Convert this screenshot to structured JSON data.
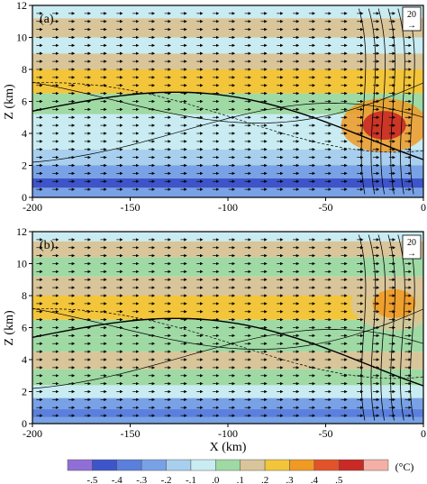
{
  "chart_data": [
    {
      "panel_label": "(a)",
      "type": "heatmap",
      "title": "",
      "ylabel": "Z (km)",
      "xlabel": "",
      "xlim": [
        -200,
        0
      ],
      "ylim": [
        0,
        12
      ],
      "x_ticks": [
        "-200",
        "-150",
        "-100",
        "-50",
        "0"
      ],
      "y_ticks": [
        "0",
        "2",
        "4",
        "6",
        "8",
        "10",
        "12"
      ],
      "reference_vector": {
        "label": "20",
        "symbol": "→"
      },
      "bands": [
        {
          "z": [
            0.0,
            0.6
          ],
          "value": -0.3
        },
        {
          "z": [
            0.6,
            1.2
          ],
          "value": -0.45
        },
        {
          "z": [
            1.2,
            2.0
          ],
          "value": -0.35
        },
        {
          "z": [
            2.0,
            3.0
          ],
          "value": -0.2
        },
        {
          "z": [
            3.0,
            4.2
          ],
          "value": -0.1
        },
        {
          "z": [
            4.2,
            5.2
          ],
          "value": -0.05
        },
        {
          "z": [
            5.2,
            6.5
          ],
          "value": 0.0
        },
        {
          "z": [
            6.5,
            8.0
          ],
          "value": 0.2
        },
        {
          "z": [
            8.0,
            9.0
          ],
          "value": 0.1
        },
        {
          "z": [
            9.0,
            10.0
          ],
          "value": -0.05
        },
        {
          "z": [
            10.0,
            11.2
          ],
          "value": 0.1
        },
        {
          "z": [
            11.2,
            12.0
          ],
          "value": -0.1
        }
      ],
      "warm_core": {
        "x": -20,
        "z": 4.5,
        "value": 0.5
      }
    },
    {
      "panel_label": "(b)",
      "type": "heatmap",
      "title": "",
      "ylabel": "Z (km)",
      "xlabel": "X (km)",
      "xlim": [
        -200,
        0
      ],
      "ylim": [
        0,
        12
      ],
      "x_ticks": [
        "-200",
        "-150",
        "-100",
        "-50",
        "0"
      ],
      "y_ticks": [
        "0",
        "2",
        "4",
        "6",
        "8",
        "10",
        "12"
      ],
      "reference_vector": {
        "label": "20",
        "symbol": "→"
      },
      "bands": [
        {
          "z": [
            0.0,
            0.4
          ],
          "value": -0.25
        },
        {
          "z": [
            0.4,
            0.9
          ],
          "value": -0.4
        },
        {
          "z": [
            0.9,
            1.6
          ],
          "value": -0.3
        },
        {
          "z": [
            1.6,
            2.4
          ],
          "value": -0.15
        },
        {
          "z": [
            2.4,
            3.4
          ],
          "value": 0.0
        },
        {
          "z": [
            3.4,
            4.5
          ],
          "value": 0.1
        },
        {
          "z": [
            4.5,
            5.4
          ],
          "value": 0.0
        },
        {
          "z": [
            5.4,
            6.5
          ],
          "value": 0.05
        },
        {
          "z": [
            6.5,
            8.0
          ],
          "value": 0.2
        },
        {
          "z": [
            8.0,
            9.2
          ],
          "value": 0.1
        },
        {
          "z": [
            9.2,
            10.4
          ],
          "value": 0.0
        },
        {
          "z": [
            10.4,
            11.4
          ],
          "value": 0.1
        },
        {
          "z": [
            11.4,
            12.0
          ],
          "value": -0.1
        }
      ],
      "warm_core": {
        "x": -15,
        "z": 7.5,
        "value": 0.3
      }
    }
  ],
  "colorbar": {
    "unit": "(°C)",
    "ticks": [
      "-.5",
      "-.4",
      "-.3",
      "-.2",
      "-.1",
      ".0",
      ".1",
      ".2",
      ".3",
      ".4",
      ".5"
    ],
    "colors": [
      "#8f6fd6",
      "#3e55c9",
      "#5a7fdc",
      "#79a2e6",
      "#a8cfee",
      "#c9ecf2",
      "#9fd9a4",
      "#d9c59a",
      "#f2c53b",
      "#f09a24",
      "#e3532a",
      "#c92a25",
      "#f4b0a7"
    ]
  }
}
